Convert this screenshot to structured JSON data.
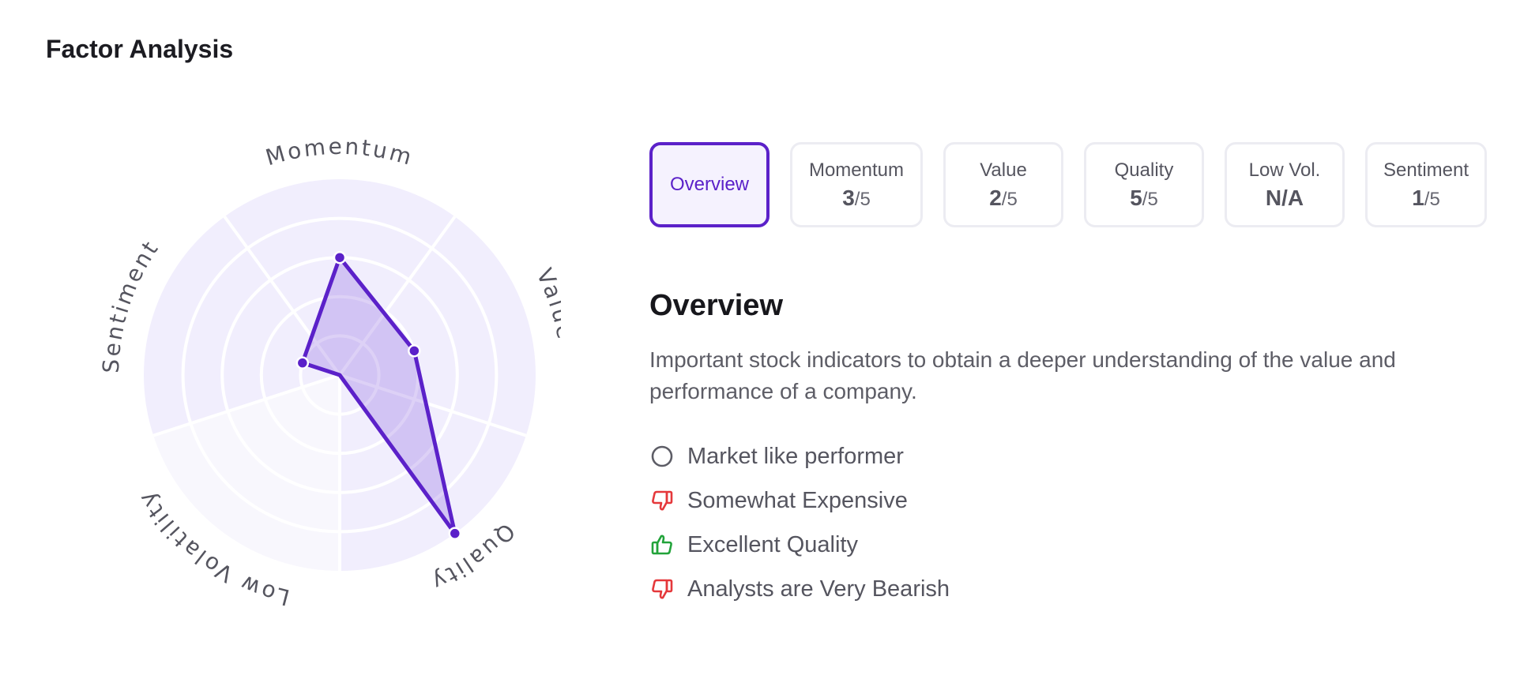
{
  "page": {
    "title": "Factor Analysis"
  },
  "chart_data": {
    "type": "radar",
    "axes": [
      "Momentum",
      "Value",
      "Quality",
      "Low Volatility",
      "Sentiment"
    ],
    "values": [
      3,
      2,
      5,
      null,
      1
    ],
    "max": 5,
    "rings": 5,
    "colors": {
      "stroke": "#5b21c9",
      "fill": "rgba(120,70,220,0.25)",
      "background": "#f1eefd",
      "background_inactive": "#f8f7fd"
    }
  },
  "tabs": [
    {
      "label": "Overview",
      "active": true
    },
    {
      "label": "Momentum",
      "score": "3",
      "suffix": "/5"
    },
    {
      "label": "Value",
      "score": "2",
      "suffix": "/5"
    },
    {
      "label": "Quality",
      "score": "5",
      "suffix": "/5"
    },
    {
      "label": "Low Vol.",
      "score": "N/A"
    },
    {
      "label": "Sentiment",
      "score": "1",
      "suffix": "/5"
    }
  ],
  "overview": {
    "heading": "Overview",
    "description": "Important stock indicators to obtain a deeper understanding of the value and performance of a company.",
    "items": [
      {
        "icon": "circle-icon",
        "text": "Market like performer"
      },
      {
        "icon": "thumbs-down-icon",
        "text": "Somewhat Expensive"
      },
      {
        "icon": "thumbs-up-icon",
        "text": "Excellent Quality"
      },
      {
        "icon": "thumbs-down-icon",
        "text": "Analysts are Very Bearish"
      }
    ]
  }
}
